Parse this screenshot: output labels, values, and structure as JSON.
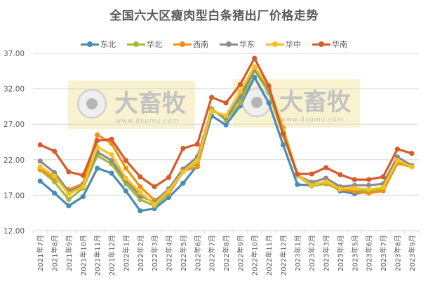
{
  "chart_data": {
    "type": "line",
    "title": "全国六大区瘦肉型白条猪出厂价格走势",
    "xlabel": "",
    "ylabel": "",
    "ylim": [
      12,
      37
    ],
    "yticks": [
      "12.00",
      "17.00",
      "22.00",
      "27.00",
      "32.00",
      "37.00"
    ],
    "grid": true,
    "legend_position": "top",
    "categories": [
      "2021年7月",
      "2021年8月",
      "2021年9月",
      "2021年10月",
      "2021年11月",
      "2021年12月",
      "2022年1月",
      "2022年2月",
      "2022年3月",
      "2022年4月",
      "2022年5月",
      "2022年6月",
      "2022年7月",
      "2022年8月",
      "2022年9月",
      "2022年10月",
      "2022年11月",
      "2022年12月",
      "2023年1月",
      "2023年2月",
      "2023年3月",
      "2023年4月",
      "2023年5月",
      "2023年6月",
      "2023年7月",
      "2023年8月",
      "2023年9月"
    ],
    "series": [
      {
        "name": "东北",
        "color": "#4a8bb6",
        "values": [
          19.0,
          17.3,
          15.5,
          16.8,
          20.8,
          20.1,
          17.6,
          14.8,
          15.1,
          16.7,
          18.7,
          21.2,
          28.2,
          26.9,
          29.6,
          33.6,
          30.0,
          24.1,
          18.5,
          18.4,
          18.9,
          17.6,
          17.2,
          17.5,
          18.0,
          21.8,
          21.1
        ]
      },
      {
        "name": "华北",
        "color": "#a4b93a",
        "values": [
          20.6,
          18.9,
          16.4,
          18.0,
          22.6,
          21.4,
          18.6,
          16.4,
          15.5,
          17.2,
          20.3,
          21.6,
          29.2,
          27.6,
          30.0,
          34.6,
          31.5,
          25.5,
          19.8,
          18.3,
          18.6,
          17.8,
          17.6,
          17.6,
          17.9,
          21.6,
          21.0
        ]
      },
      {
        "name": "西南",
        "color": "#f0900f",
        "values": [
          20.7,
          19.4,
          17.8,
          18.6,
          25.5,
          24.3,
          20.8,
          18.2,
          16.3,
          17.4,
          20.4,
          21.0,
          28.9,
          28.2,
          31.4,
          34.9,
          32.2,
          26.5,
          19.9,
          18.5,
          18.8,
          17.8,
          17.5,
          17.3,
          17.6,
          21.5,
          21.0
        ]
      },
      {
        "name": "华东",
        "color": "#8c8c8c",
        "values": [
          21.8,
          20.2,
          17.5,
          18.4,
          23.1,
          21.9,
          19.1,
          16.9,
          16.0,
          17.9,
          20.7,
          22.4,
          29.0,
          27.9,
          30.8,
          34.8,
          32.0,
          26.0,
          19.8,
          18.8,
          19.4,
          18.2,
          18.4,
          18.4,
          18.6,
          22.4,
          21.2
        ]
      },
      {
        "name": "华中",
        "color": "#f6c21c",
        "values": [
          21.0,
          19.7,
          17.2,
          18.2,
          23.8,
          22.7,
          19.4,
          17.4,
          15.7,
          17.6,
          20.3,
          21.9,
          28.9,
          28.2,
          31.6,
          35.1,
          32.3,
          26.2,
          19.9,
          18.4,
          18.9,
          17.9,
          18.0,
          17.8,
          18.1,
          21.9,
          21.0
        ]
      },
      {
        "name": "华南",
        "color": "#d65a2a",
        "values": [
          24.1,
          23.2,
          20.3,
          19.8,
          24.7,
          24.9,
          21.9,
          19.6,
          18.2,
          19.5,
          23.6,
          24.2,
          30.8,
          30.0,
          32.6,
          36.3,
          32.4,
          25.7,
          20.0,
          20.0,
          20.9,
          19.9,
          19.2,
          19.2,
          19.6,
          23.5,
          22.9
        ]
      }
    ]
  },
  "watermarks": [
    {
      "brand": "大畜牧",
      "url": "www.dxumu.com"
    },
    {
      "brand": "大畜牧",
      "url": "www.dxumu.com"
    }
  ]
}
